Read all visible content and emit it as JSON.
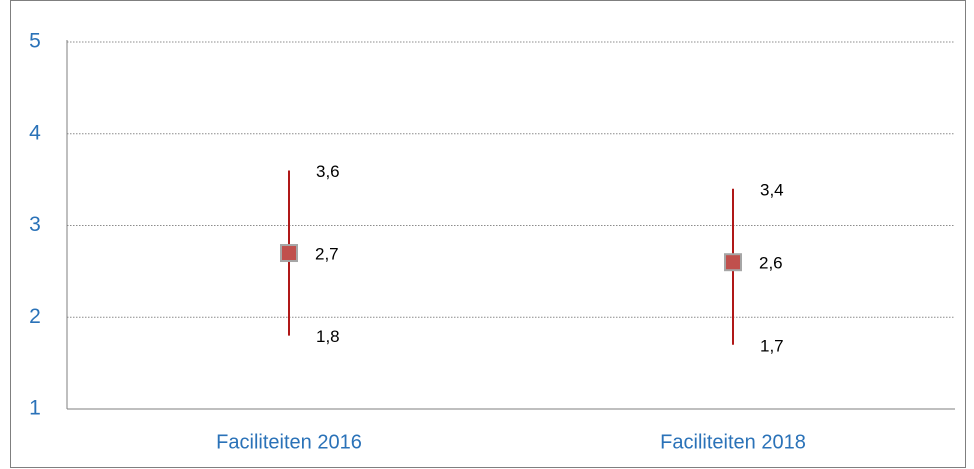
{
  "chart_data": {
    "type": "range",
    "categories": [
      "Faciliteiten 2016",
      "Faciliteiten 2018"
    ],
    "values": [
      2.7,
      2.6
    ],
    "value_labels": [
      "2,7",
      "2,6"
    ],
    "high": [
      3.6,
      3.4
    ],
    "high_labels": [
      "3,6",
      "3,4"
    ],
    "low": [
      1.8,
      1.7
    ],
    "low_labels": [
      "1,8",
      "1,7"
    ],
    "color": "#c0504d",
    "line_color": "#b01818",
    "ylim": [
      1,
      5
    ],
    "yticks": [
      1,
      2,
      3,
      4,
      5
    ],
    "grid": true
  }
}
